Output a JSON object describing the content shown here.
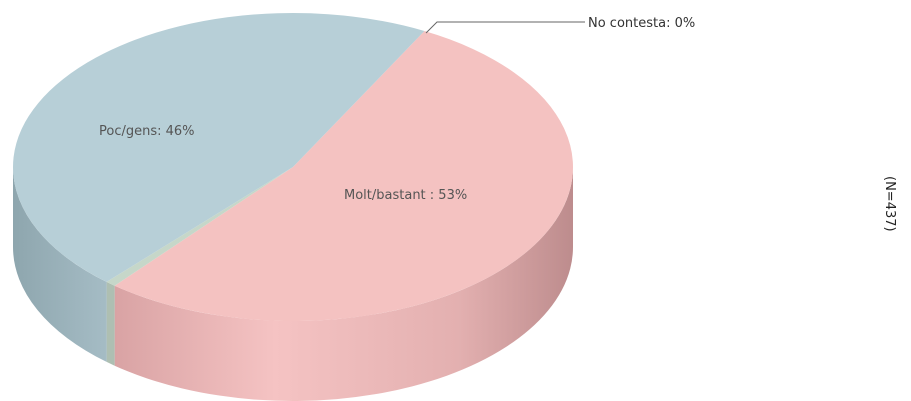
{
  "chart_data": {
    "type": "pie",
    "style": "3d",
    "slices": [
      {
        "label": "Molt/bastant : 53%",
        "value": 53,
        "color": "#f4c2c1"
      },
      {
        "label": "No contesta: 0%",
        "value": 0.6,
        "color": "#c6d7c9"
      },
      {
        "label": "Poc/gens: 46%",
        "value": 46,
        "color": "#b7cfd7"
      }
    ],
    "note": "(N=437)"
  }
}
